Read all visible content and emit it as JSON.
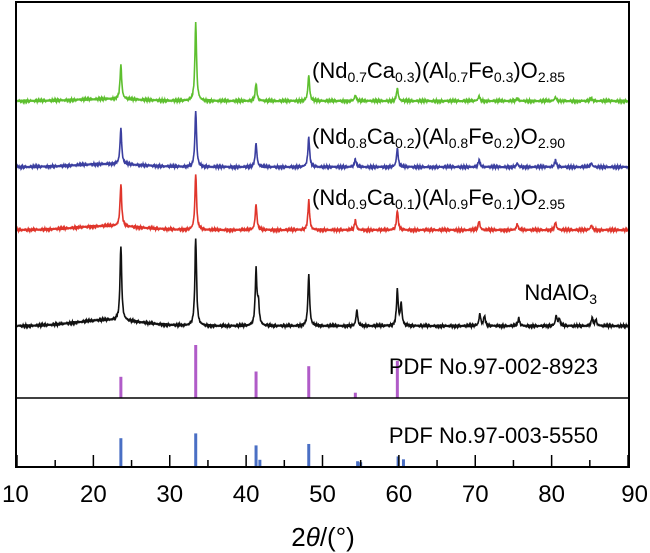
{
  "chart_data": {
    "type": "line",
    "title": "",
    "xlabel": {
      "prefix": "2",
      "theta": "θ",
      "suffix": "/(°)"
    },
    "xlim": [
      10,
      90
    ],
    "x_ticks": [
      "10",
      "20",
      "30",
      "40",
      "50",
      "60",
      "70",
      "80",
      "90"
    ],
    "grid": false,
    "series": [
      {
        "name": "(Nd0.7Ca0.3)(Al0.7Fe0.3)O2.85",
        "label_parts": [
          {
            "t": "(Nd"
          },
          {
            "t": "0.7",
            "sub": true
          },
          {
            "t": "Ca"
          },
          {
            "t": "0.3",
            "sub": true
          },
          {
            "t": ")(Al"
          },
          {
            "t": "0.7",
            "sub": true
          },
          {
            "t": "Fe"
          },
          {
            "t": "0.3",
            "sub": true
          },
          {
            "t": ")O"
          },
          {
            "t": "2.85",
            "sub": true
          }
        ],
        "color": "#5dbf2e",
        "peaks": [
          [
            23.6,
            34
          ],
          [
            33.4,
            78
          ],
          [
            41.3,
            18
          ],
          [
            48.2,
            26
          ],
          [
            54.3,
            6
          ],
          [
            59.8,
            13
          ],
          [
            70.5,
            5
          ],
          [
            75.5,
            3
          ],
          [
            80.5,
            4
          ],
          [
            85.2,
            3
          ]
        ]
      },
      {
        "name": "(Nd0.8Ca0.2)(Al0.8Fe0.2)O2.90",
        "label_parts": [
          {
            "t": "(Nd"
          },
          {
            "t": "0.8",
            "sub": true
          },
          {
            "t": "Ca"
          },
          {
            "t": "0.2",
            "sub": true
          },
          {
            "t": ")(Al"
          },
          {
            "t": "0.8",
            "sub": true
          },
          {
            "t": "Fe"
          },
          {
            "t": "0.2",
            "sub": true
          },
          {
            "t": ")O"
          },
          {
            "t": "2.90",
            "sub": true
          }
        ],
        "color": "#3b3fa0",
        "peaks": [
          [
            23.6,
            36
          ],
          [
            33.4,
            56
          ],
          [
            41.3,
            24
          ],
          [
            48.2,
            30
          ],
          [
            54.3,
            8
          ],
          [
            59.8,
            19
          ],
          [
            70.5,
            7
          ],
          [
            75.5,
            4
          ],
          [
            80.5,
            7
          ],
          [
            85.2,
            4
          ]
        ]
      },
      {
        "name": "(Nd0.9Ca0.1)(Al0.9Fe0.1)O2.95",
        "label_parts": [
          {
            "t": "(Nd"
          },
          {
            "t": "0.9",
            "sub": true
          },
          {
            "t": "Ca"
          },
          {
            "t": "0.1",
            "sub": true
          },
          {
            "t": ")(Al"
          },
          {
            "t": "0.9",
            "sub": true
          },
          {
            "t": "Fe"
          },
          {
            "t": "0.1",
            "sub": true
          },
          {
            "t": ")O"
          },
          {
            "t": "2.95",
            "sub": true
          }
        ],
        "color": "#e0352b",
        "peaks": [
          [
            23.6,
            42
          ],
          [
            33.4,
            56
          ],
          [
            41.3,
            26
          ],
          [
            48.2,
            30
          ],
          [
            54.3,
            10
          ],
          [
            59.8,
            20
          ],
          [
            70.5,
            9
          ],
          [
            75.5,
            6
          ],
          [
            80.5,
            8
          ],
          [
            85.2,
            5
          ]
        ]
      },
      {
        "name": "NdAlO3",
        "label_parts": [
          {
            "t": "NdAlO"
          },
          {
            "t": "3",
            "sub": true
          }
        ],
        "color": "#111111",
        "peaks": [
          [
            23.6,
            75
          ],
          [
            33.4,
            88
          ],
          [
            41.3,
            55
          ],
          [
            41.6,
            22
          ],
          [
            48.2,
            52
          ],
          [
            54.5,
            16
          ],
          [
            59.8,
            36
          ],
          [
            60.3,
            22
          ],
          [
            70.6,
            12
          ],
          [
            71.2,
            10
          ],
          [
            75.7,
            8
          ],
          [
            80.6,
            10
          ],
          [
            81.0,
            7
          ],
          [
            85.3,
            8
          ],
          [
            85.8,
            6
          ]
        ]
      }
    ],
    "references": [
      {
        "name": "PDF No.97-002-8923",
        "color": "#b05bc8",
        "sticks": [
          [
            23.6,
            0.4
          ],
          [
            33.4,
            1.0
          ],
          [
            41.3,
            0.5
          ],
          [
            48.2,
            0.6
          ],
          [
            54.3,
            0.1
          ],
          [
            59.8,
            0.7
          ]
        ]
      },
      {
        "name": "PDF No.97-003-5550",
        "color": "#4a6fc4",
        "sticks": [
          [
            23.6,
            0.6
          ],
          [
            33.4,
            0.7
          ],
          [
            41.3,
            0.45
          ],
          [
            41.8,
            0.15
          ],
          [
            48.2,
            0.48
          ],
          [
            54.6,
            0.12
          ],
          [
            55.0,
            0.1
          ],
          [
            59.9,
            0.22
          ],
          [
            60.6,
            0.16
          ]
        ]
      }
    ]
  }
}
